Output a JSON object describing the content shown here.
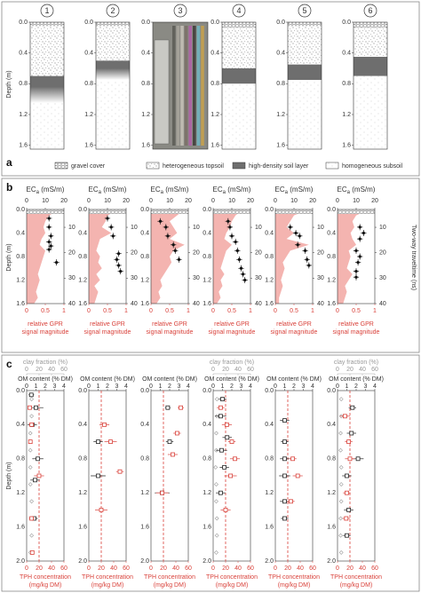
{
  "panel_a": {
    "label": "a",
    "axis_label": "Depth (m)",
    "ticks": [
      {
        "value": 0,
        "label": "0.0"
      },
      0.4,
      0.8,
      1.2,
      1.6
    ],
    "ylim": [
      0,
      1.65
    ],
    "legend": [
      "gravel cover",
      "heterogeneous topsoil",
      "high-density soil layer",
      "homogeneous subsoil"
    ],
    "columns": [
      {
        "label": "1",
        "fade": true,
        "layers": [
          [
            0,
            0.05,
            0
          ],
          [
            0.05,
            0.7,
            1
          ],
          [
            0.7,
            1.05,
            2
          ],
          [
            1.05,
            1.65,
            3
          ]
        ]
      },
      {
        "label": "2",
        "fade": true,
        "layers": [
          [
            0,
            0.05,
            0
          ],
          [
            0.05,
            0.5,
            1
          ],
          [
            0.5,
            0.75,
            2
          ],
          [
            0.75,
            1.65,
            3
          ]
        ]
      },
      {
        "label": "3",
        "photo": true
      },
      {
        "label": "4",
        "layers": [
          [
            0,
            0.07,
            0
          ],
          [
            0.07,
            0.6,
            1
          ],
          [
            0.6,
            0.8,
            2
          ],
          [
            0.8,
            1.65,
            3
          ]
        ]
      },
      {
        "label": "5",
        "layers": [
          [
            0,
            0.05,
            0
          ],
          [
            0.05,
            0.55,
            1
          ],
          [
            0.55,
            0.75,
            2
          ],
          [
            0.75,
            1.65,
            3
          ]
        ]
      },
      {
        "label": "6",
        "layers": [
          [
            0,
            0.07,
            0
          ],
          [
            0.07,
            0.45,
            1
          ],
          [
            0.45,
            0.7,
            2
          ],
          [
            0.7,
            1.65,
            3
          ]
        ]
      }
    ]
  },
  "panel_b": {
    "label": "b",
    "ec_label": "EC",
    "ec_sub": "a",
    "ec_unit": "(mS/m)",
    "eclim": [
      0,
      20
    ],
    "ecticks": [
      0,
      10,
      20
    ],
    "gprlim": [
      0,
      1
    ],
    "gprticks": [
      0,
      0.5,
      1
    ],
    "gpr_label": [
      "relative GPR",
      "signal magnitude"
    ],
    "axis_label": "Depth (m)",
    "ylim": [
      0,
      1.6
    ],
    "yticks": [
      {
        "value": 0,
        "label": "0.0"
      },
      0.4,
      0.8,
      1.2,
      1.6
    ],
    "tt_label": "Two-way traveltime (ns)",
    "ttlim": [
      3,
      40
    ],
    "ttticks": [
      10,
      20,
      30,
      40
    ],
    "gpr_depths": [
      0,
      0.1,
      0.2,
      0.3,
      0.4,
      0.5,
      0.6,
      0.7,
      0.8,
      0.9,
      1.0,
      1.1,
      1.2,
      1.3,
      1.4,
      1.5,
      1.6
    ],
    "plots": [
      {
        "gpr": [
          0.9,
          0.6,
          0.5,
          0.45,
          0.5,
          0.4,
          0.35,
          0.5,
          0.45,
          0.4,
          0.35,
          0.3,
          0.35,
          0.3,
          0.25,
          0.3,
          0.2
        ],
        "ec": [
          [
            0.15,
            12,
            1.5
          ],
          [
            0.3,
            12,
            1.5
          ],
          [
            0.45,
            13,
            1.5
          ],
          [
            0.55,
            12,
            1.5
          ],
          [
            0.62,
            13,
            1.5
          ],
          [
            0.68,
            12,
            1.5
          ],
          [
            0.9,
            16,
            1.5
          ]
        ]
      },
      {
        "gpr": [
          0.8,
          0.5,
          0.45,
          0.35,
          0.6,
          0.3,
          0.25,
          0.2,
          0.3,
          0.25,
          0.35,
          0.2,
          0.3,
          0.15,
          0.25,
          0.2,
          0.15
        ],
        "ec": [
          [
            0.15,
            10,
            1.5
          ],
          [
            0.3,
            12,
            1.5
          ],
          [
            0.45,
            13,
            1.5
          ],
          [
            0.75,
            16,
            1.5
          ],
          [
            0.85,
            15,
            1.5
          ],
          [
            0.95,
            16,
            1.5
          ],
          [
            1.05,
            17,
            1.5
          ]
        ]
      },
      {
        "gpr": [
          0.9,
          0.7,
          0.5,
          0.6,
          0.7,
          0.5,
          0.9,
          0.6,
          0.5,
          0.55,
          0.45,
          0.35,
          0.25,
          0.3,
          0.2,
          0.25,
          0.15
        ],
        "ec": [
          [
            0.2,
            5,
            1.5
          ],
          [
            0.3,
            8,
            1.5
          ],
          [
            0.45,
            9,
            1.5
          ],
          [
            0.6,
            12,
            1.5
          ],
          [
            0.7,
            13,
            1.5
          ],
          [
            0.85,
            15,
            1.5
          ]
        ]
      },
      {
        "gpr": [
          0.8,
          0.6,
          0.5,
          0.45,
          0.35,
          0.3,
          0.5,
          0.35,
          0.3,
          0.25,
          0.2,
          0.3,
          0.2,
          0.25,
          0.15,
          0.2,
          0.1
        ],
        "ec": [
          [
            0.2,
            8,
            1.5
          ],
          [
            0.3,
            9,
            1.5
          ],
          [
            0.45,
            10,
            1.5
          ],
          [
            0.55,
            12,
            1.5
          ],
          [
            0.7,
            13,
            1.5
          ],
          [
            0.85,
            14,
            1.5
          ],
          [
            1.0,
            15,
            1.5
          ],
          [
            1.1,
            16,
            1.5
          ],
          [
            1.2,
            17,
            1.5
          ]
        ]
      },
      {
        "gpr": [
          0.9,
          0.5,
          0.4,
          0.3,
          0.5,
          0.3,
          0.9,
          0.4,
          0.3,
          0.2,
          0.25,
          0.2,
          0.15,
          0.2,
          0.15,
          0.1,
          0.1
        ],
        "ec": [
          [
            0.3,
            8,
            1.5
          ],
          [
            0.4,
            11,
            1.5
          ],
          [
            0.45,
            13,
            1.5
          ],
          [
            0.6,
            12,
            1.5
          ],
          [
            0.7,
            16,
            1.5
          ],
          [
            0.85,
            17,
            1.5
          ],
          [
            0.95,
            18,
            1.5
          ]
        ]
      },
      {
        "gpr": [
          0.85,
          0.5,
          0.4,
          0.45,
          0.35,
          0.4,
          0.5,
          0.3,
          0.35,
          0.3,
          0.25,
          0.4,
          0.3,
          0.2,
          0.25,
          0.2,
          0.15
        ],
        "ec": [
          [
            0.3,
            12,
            1.5
          ],
          [
            0.4,
            14,
            1.5
          ],
          [
            0.5,
            12,
            1.5
          ],
          [
            0.7,
            10,
            1.5
          ],
          [
            0.8,
            12,
            1.5
          ],
          [
            0.9,
            11,
            1.5
          ],
          [
            1.05,
            10,
            1.5
          ],
          [
            1.15,
            10,
            1.5
          ]
        ]
      }
    ]
  },
  "panel_c": {
    "label": "c",
    "clay_label": "clay fraction (%)",
    "claylim": [
      0,
      60
    ],
    "clayticks": [
      0,
      20,
      40,
      60
    ],
    "om_label": "OM content (% DM)",
    "omlim": [
      0,
      4
    ],
    "omticks": [
      0,
      1,
      2,
      3,
      4
    ],
    "tph_label": [
      "TPH concentration",
      "(mg/kg DM)"
    ],
    "tphlim": [
      0,
      60
    ],
    "tphticks": [
      0,
      20,
      40,
      60
    ],
    "threshold": 20,
    "axis_label": "Depth (m)",
    "ylim": [
      0,
      2
    ],
    "yticks": [
      {
        "value": 0,
        "label": "0.0"
      },
      0.4,
      0.8,
      1.2,
      1.6,
      {
        "value": 2,
        "label": "2.0"
      }
    ],
    "plots": [
      {
        "clay": [
          [
            0.1,
            8
          ],
          [
            0.3,
            8
          ],
          [
            0.5,
            6
          ],
          [
            0.7,
            6
          ],
          [
            0.9,
            6
          ],
          [
            1.1,
            6
          ],
          [
            1.3,
            8
          ],
          [
            1.5,
            8
          ],
          [
            1.7,
            8
          ],
          [
            1.9,
            6
          ]
        ],
        "om": [
          [
            0.05,
            0.5,
            0.3
          ],
          [
            0.2,
            1,
            0.8
          ],
          [
            0.4,
            0.6,
            0.5
          ],
          [
            0.8,
            1.2,
            0.6
          ],
          [
            1.05,
            0.9,
            0.5
          ],
          [
            1.5,
            0.8,
            0.4
          ]
        ],
        "tph": [
          [
            0.2,
            5,
            3
          ],
          [
            0.4,
            8,
            4
          ],
          [
            0.6,
            6,
            3
          ],
          [
            1.0,
            20,
            8
          ],
          [
            1.5,
            8,
            4
          ],
          [
            1.9,
            9,
            3
          ]
        ]
      },
      {
        "om": [
          [
            0.6,
            1,
            0.5
          ],
          [
            1.0,
            1,
            0.8
          ]
        ],
        "tph": [
          [
            0.6,
            35,
            10
          ],
          [
            0.4,
            25,
            8
          ],
          [
            1.4,
            20,
            10
          ],
          [
            0.95,
            50,
            6
          ]
        ]
      },
      {
        "om": [
          [
            0.2,
            1.8,
            0.3
          ],
          [
            0.6,
            2,
            0.4
          ],
          [
            1.2,
            1.2,
            0.8
          ]
        ],
        "tph": [
          [
            0.2,
            48,
            5
          ],
          [
            0.75,
            35,
            8
          ],
          [
            0.5,
            42,
            6
          ],
          [
            1.2,
            18,
            10
          ]
        ]
      },
      {
        "clay": [
          [
            0.1,
            6
          ],
          [
            0.3,
            6
          ],
          [
            0.5,
            5
          ],
          [
            0.7,
            5
          ],
          [
            0.9,
            4
          ],
          [
            1.1,
            5
          ],
          [
            1.3,
            5
          ],
          [
            1.5,
            6
          ],
          [
            1.7,
            6
          ],
          [
            1.9,
            5
          ]
        ],
        "om": [
          [
            0.1,
            1,
            0.4
          ],
          [
            0.3,
            0.8,
            0.6
          ],
          [
            0.55,
            1.5,
            0.5
          ],
          [
            0.7,
            0.9,
            0.6
          ],
          [
            0.9,
            1.2,
            0.5
          ],
          [
            1.2,
            0.8,
            0.5
          ]
        ],
        "tph": [
          [
            0.2,
            12,
            6
          ],
          [
            0.4,
            22,
            8
          ],
          [
            0.6,
            30,
            6
          ],
          [
            0.8,
            35,
            8
          ],
          [
            1.0,
            28,
            10
          ],
          [
            1.4,
            20,
            8
          ]
        ]
      },
      {
        "om": [
          [
            0.35,
            1,
            0.5
          ],
          [
            0.6,
            1,
            0.4
          ],
          [
            0.8,
            1,
            0.5
          ],
          [
            1.0,
            1,
            0.6
          ],
          [
            1.3,
            1,
            0.5
          ],
          [
            1.5,
            1,
            0.4
          ]
        ],
        "tph": [
          [
            0.8,
            28,
            6
          ],
          [
            1.0,
            36,
            8
          ],
          [
            1.3,
            25,
            6
          ]
        ]
      },
      {
        "clay": [
          [
            0.1,
            6
          ],
          [
            0.3,
            6
          ],
          [
            0.5,
            5
          ],
          [
            0.7,
            5
          ],
          [
            0.9,
            6
          ],
          [
            1.1,
            6
          ],
          [
            1.3,
            6
          ],
          [
            1.5,
            5
          ],
          [
            1.7,
            5
          ],
          [
            1.9,
            6
          ]
        ],
        "om": [
          [
            0.2,
            1.6,
            0.4
          ],
          [
            0.5,
            1.5,
            0.5
          ],
          [
            0.8,
            2.2,
            0.6
          ],
          [
            1.0,
            1,
            0.5
          ],
          [
            1.4,
            1.2,
            0.5
          ],
          [
            1.7,
            1,
            0.4
          ]
        ],
        "tph": [
          [
            0.3,
            12,
            8
          ],
          [
            0.6,
            18,
            6
          ],
          [
            0.8,
            20,
            8
          ],
          [
            1.2,
            15,
            6
          ],
          [
            1.5,
            14,
            6
          ]
        ]
      }
    ]
  }
}
